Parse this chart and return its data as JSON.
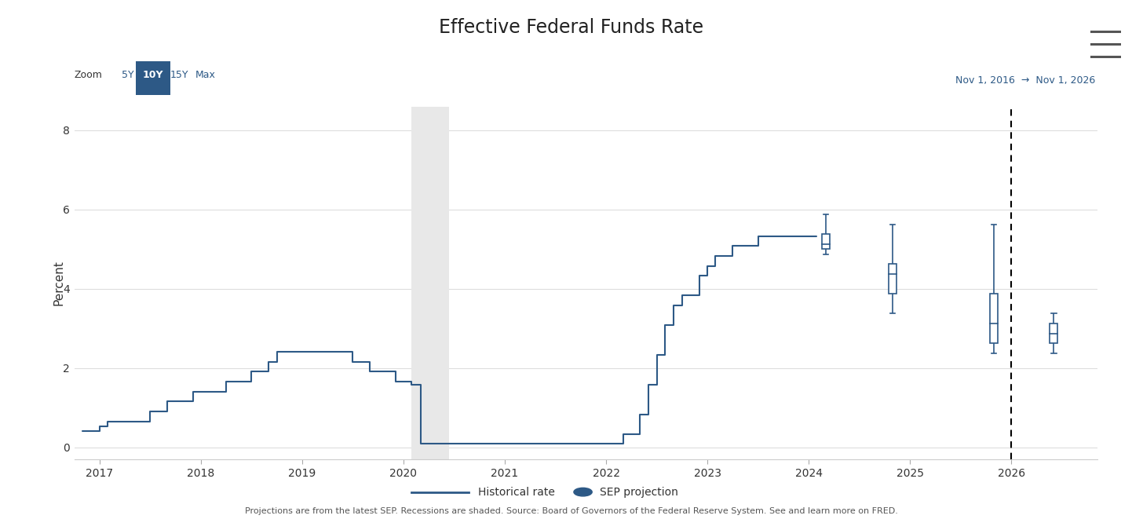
{
  "title": "Effective Federal Funds Rate",
  "ylabel": "Percent",
  "date_range_text": "Nov 1, 2016  →  Nov 1, 2026",
  "zoom_label": "Zoom",
  "zoom_buttons": [
    "5Y",
    "10Y",
    "15Y",
    "Max"
  ],
  "zoom_active": "10Y",
  "xlim": [
    2016.75,
    2026.85
  ],
  "ylim": [
    -0.3,
    8.6
  ],
  "yticks": [
    0,
    2,
    4,
    6,
    8
  ],
  "xticks": [
    2017,
    2018,
    2019,
    2020,
    2021,
    2022,
    2023,
    2024,
    2025,
    2026
  ],
  "line_color": "#2d5986",
  "recession_start": 2020.08,
  "recession_end": 2020.45,
  "recession_color": "#e8e8e8",
  "dashed_vline_x": 2026.0,
  "footnote": "Projections are from the latest SEP. Recessions are shaded. Source: Board of Governors of the Federal Reserve System. See and learn more on FRED.",
  "historical_rate_x": [
    2016.83,
    2016.92,
    2017.0,
    2017.08,
    2017.25,
    2017.5,
    2017.67,
    2017.75,
    2017.92,
    2018.0,
    2018.25,
    2018.5,
    2018.67,
    2018.75,
    2018.92,
    2019.0,
    2019.25,
    2019.5,
    2019.67,
    2019.75,
    2019.92,
    2020.0,
    2020.08,
    2020.17,
    2020.33,
    2020.42,
    2020.5,
    2020.58,
    2020.75,
    2020.92,
    2021.0,
    2021.25,
    2021.5,
    2021.75,
    2021.92,
    2022.0,
    2022.08,
    2022.17,
    2022.33,
    2022.42,
    2022.5,
    2022.58,
    2022.67,
    2022.75,
    2022.92,
    2023.0,
    2023.08,
    2023.25,
    2023.5,
    2023.67,
    2023.75,
    2023.92,
    2024.0,
    2024.08
  ],
  "historical_rate_y": [
    0.41,
    0.41,
    0.54,
    0.66,
    0.66,
    0.91,
    1.16,
    1.16,
    1.41,
    1.41,
    1.66,
    1.91,
    2.16,
    2.41,
    2.41,
    2.41,
    2.41,
    2.16,
    1.91,
    1.91,
    1.66,
    1.66,
    1.58,
    0.09,
    0.09,
    0.09,
    0.09,
    0.09,
    0.09,
    0.09,
    0.09,
    0.09,
    0.09,
    0.09,
    0.09,
    0.09,
    0.09,
    0.33,
    0.83,
    1.58,
    2.33,
    3.08,
    3.58,
    3.83,
    4.33,
    4.58,
    4.83,
    5.08,
    5.33,
    5.33,
    5.33,
    5.33,
    5.33,
    5.33
  ],
  "sep_projections": [
    {
      "x": 2024.17,
      "median": 5.125,
      "q1": 5.0,
      "q3": 5.375,
      "whisker_low": 4.875,
      "whisker_high": 5.875
    },
    {
      "x": 2024.83,
      "median": 4.375,
      "q1": 3.875,
      "q3": 4.625,
      "whisker_low": 3.375,
      "whisker_high": 5.625
    },
    {
      "x": 2025.83,
      "median": 3.125,
      "q1": 2.625,
      "q3": 3.875,
      "whisker_low": 2.375,
      "whisker_high": 5.625
    },
    {
      "x": 2026.42,
      "median": 2.875,
      "q1": 2.625,
      "q3": 3.125,
      "whisker_low": 2.375,
      "whisker_high": 3.375
    }
  ],
  "background_color": "#ffffff",
  "grid_color": "#dddddd",
  "axis_color": "#2d5986",
  "text_color": "#333333",
  "menu_color": "#555555"
}
